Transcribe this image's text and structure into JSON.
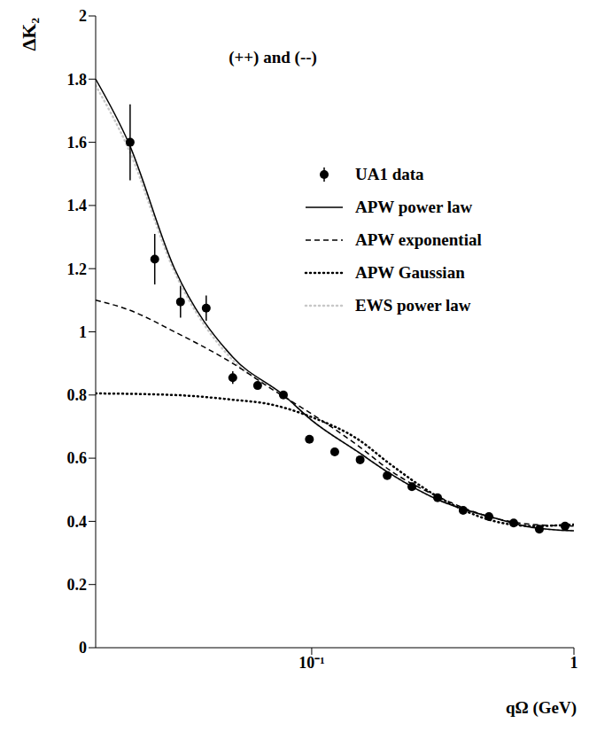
{
  "chart_data": {
    "type": "scatter",
    "title": "(++) and (--)",
    "x_label": "qΩ (GeV)",
    "y_label": "ΔK₂",
    "log": "x",
    "grid": false,
    "xlim": [
      0.015,
      1
    ],
    "xticks": [
      {
        "value": 0.1,
        "label": "10⁻¹"
      },
      1
    ],
    "ylim": [
      0,
      2
    ],
    "yticks": [
      0,
      0.2,
      0.4,
      0.6,
      0.8,
      1,
      1.2,
      1.4,
      1.6,
      1.8,
      2
    ],
    "series": [
      {
        "name": "UA1 data",
        "type": "scatter",
        "color": "#000000",
        "marker": "circle",
        "x": [
          0.0203,
          0.0252,
          0.0316,
          0.0396,
          0.05,
          0.0622,
          0.078,
          0.098,
          0.1224,
          0.153,
          0.194,
          0.241,
          0.302,
          0.378,
          0.474,
          0.589,
          0.738,
          0.925
        ],
        "values": [
          1.6,
          1.23,
          1.095,
          1.075,
          0.855,
          0.83,
          0.8,
          0.66,
          0.62,
          0.595,
          0.545,
          0.51,
          0.475,
          0.435,
          0.415,
          0.395,
          0.375,
          0.385
        ],
        "errors": [
          0.12,
          0.08,
          0.05,
          0.04,
          0.02,
          0.01,
          0.01,
          0.01,
          0.01,
          0.01,
          0.01,
          0.01,
          0.01,
          0.01,
          0.01,
          0.01,
          0.01,
          0.01
        ]
      },
      {
        "name": "APW power law",
        "type": "line",
        "line_style": "solid",
        "color": "#000000",
        "x": [
          0.015,
          0.02,
          0.03,
          0.05,
          0.078,
          0.1,
          0.15,
          0.2,
          0.3,
          0.5,
          0.7,
          1
        ],
        "values": [
          1.8,
          1.6,
          1.2,
          0.92,
          0.8,
          0.72,
          0.62,
          0.55,
          0.47,
          0.41,
          0.38,
          0.37
        ]
      },
      {
        "name": "APW exponential",
        "type": "line",
        "line_style": "dashed",
        "color": "#000000",
        "x": [
          0.015,
          0.02,
          0.03,
          0.05,
          0.07,
          0.1,
          0.15,
          0.2,
          0.3,
          0.5,
          0.7,
          1
        ],
        "values": [
          1.1,
          1.07,
          1.0,
          0.9,
          0.82,
          0.74,
          0.64,
          0.56,
          0.48,
          0.41,
          0.39,
          0.385
        ]
      },
      {
        "name": "APW Gaussian",
        "type": "line",
        "line_style": "dotted",
        "color": "#000000",
        "x": [
          0.015,
          0.03,
          0.05,
          0.07,
          0.1,
          0.15,
          0.2,
          0.3,
          0.5,
          0.7,
          1
        ],
        "values": [
          0.805,
          0.8,
          0.785,
          0.77,
          0.73,
          0.66,
          0.58,
          0.48,
          0.4,
          0.385,
          0.39
        ]
      },
      {
        "name": "EWS power law",
        "type": "line",
        "line_style": "dotted",
        "color": "#c8c8c8",
        "x": [
          0.015,
          0.02,
          0.03,
          0.05,
          0.078,
          0.1,
          0.15,
          0.2,
          0.3,
          0.5,
          0.7,
          1
        ],
        "values": [
          1.78,
          1.58,
          1.19,
          0.91,
          0.8,
          0.72,
          0.62,
          0.55,
          0.47,
          0.41,
          0.38,
          0.37
        ]
      }
    ]
  }
}
